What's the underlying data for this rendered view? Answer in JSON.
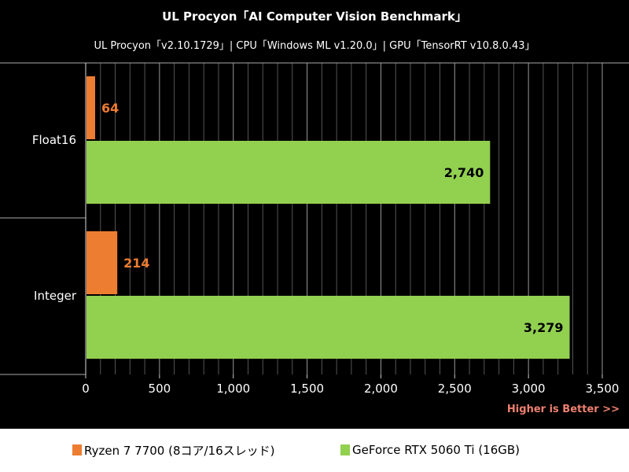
{
  "chart_data": {
    "type": "bar",
    "orientation": "horizontal",
    "title": "UL Procyon「AI Computer Vision Benchmark」",
    "subtitle": "UL Procyon「v2.10.1729」| CPU「Windows ML v1.20.0」| GPU「TensorRT v10.8.0.43」",
    "categories": [
      "Float16",
      "Integer"
    ],
    "series": [
      {
        "name": "Ryzen 7 7700 (8コア/16スレッド)",
        "color": "#ed7d31",
        "values": [
          64,
          214
        ],
        "labels": [
          "64",
          "214"
        ]
      },
      {
        "name": "GeForce RTX 5060 Ti (16GB)",
        "color": "#92d050",
        "values": [
          2740,
          3279
        ],
        "labels": [
          "2,740",
          "3,279"
        ]
      }
    ],
    "xlim": [
      0,
      3500
    ],
    "ticks": [
      0,
      500,
      1000,
      1500,
      2000,
      2500,
      3000,
      3500
    ],
    "tick_labels": [
      "0",
      "500",
      "1,000",
      "1,500",
      "2,000",
      "2,500",
      "3,000",
      "3,500"
    ],
    "minor_step": 100,
    "grid": true,
    "legend_position": "bottom",
    "note": "Higher is Better >>"
  }
}
